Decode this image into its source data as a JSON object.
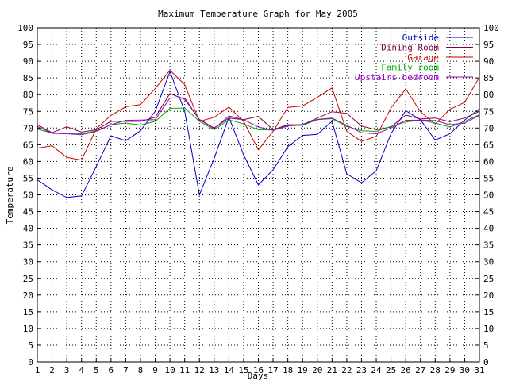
{
  "chart_data": {
    "type": "line",
    "title": "Maximum Temperature Graph for May 2005",
    "xlabel": "Days",
    "ylabel": "Temperature",
    "x": [
      1,
      2,
      3,
      4,
      5,
      6,
      7,
      8,
      9,
      10,
      11,
      12,
      13,
      14,
      15,
      16,
      17,
      18,
      19,
      20,
      21,
      22,
      23,
      24,
      25,
      26,
      27,
      28,
      29,
      30,
      31
    ],
    "xlim": [
      1,
      31
    ],
    "ylim": [
      0,
      100
    ],
    "y_ticks": [
      0,
      5,
      10,
      15,
      20,
      25,
      30,
      35,
      40,
      45,
      50,
      55,
      60,
      65,
      70,
      75,
      80,
      85,
      90,
      95,
      100
    ],
    "grid": true,
    "legend_position": "top-right",
    "series": [
      {
        "name": "Outside",
        "color": "#0000cc",
        "values": [
          54.5,
          51.5,
          49.2,
          49.7,
          58.5,
          67.7,
          66.2,
          69.2,
          75,
          86.9,
          75,
          50,
          60.9,
          73.2,
          62,
          53,
          57.5,
          64.4,
          67.8,
          68.1,
          72,
          56.3,
          53.6,
          57.2,
          68.3,
          75.2,
          72.5,
          66.4,
          68.3,
          72.4,
          75.8
        ]
      },
      {
        "name": "Dining Room",
        "color": "#800040",
        "values": [
          71,
          68.6,
          70.4,
          68.8,
          69.5,
          72,
          72,
          72,
          73.2,
          80.3,
          78.6,
          72.6,
          70,
          73,
          72.5,
          73.5,
          69.5,
          71,
          71,
          73,
          74.9,
          74.4,
          70.6,
          69.5,
          70.3,
          73.9,
          72.7,
          73,
          71.9,
          73,
          75
        ]
      },
      {
        "name": "Garage",
        "color": "#cc0000",
        "values": [
          64,
          64.7,
          61.2,
          60.4,
          69.8,
          73.8,
          76.4,
          77,
          81.8,
          87.3,
          83,
          72,
          73.2,
          76.3,
          72,
          63.5,
          69,
          76.2,
          76.6,
          79.2,
          82,
          69,
          66,
          67.5,
          76,
          81.7,
          74.9,
          71.2,
          75.6,
          77.7,
          85.2
        ]
      },
      {
        "name": "Family room",
        "color": "#00aa00",
        "values": [
          69.7,
          68.5,
          68.5,
          68.3,
          69.2,
          71,
          71.5,
          70.9,
          72,
          75.9,
          76,
          72,
          69.5,
          72.5,
          71.2,
          69.5,
          69.4,
          70.7,
          70.8,
          72.5,
          72.8,
          70.5,
          69.2,
          69,
          70.5,
          71.8,
          72.4,
          71.5,
          70.3,
          72,
          74
        ]
      },
      {
        "name": "Upstairs bedroom",
        "color": "#9900cc",
        "values": [
          70.5,
          68.4,
          68.3,
          68,
          69,
          71,
          72.3,
          72.4,
          72.5,
          79,
          79,
          72.5,
          69.8,
          73.6,
          72.5,
          70.3,
          69.3,
          70.6,
          71.1,
          72.6,
          73,
          70.8,
          68.6,
          68.3,
          70,
          72.3,
          72.4,
          72.2,
          71,
          71.5,
          73.8
        ]
      }
    ]
  }
}
